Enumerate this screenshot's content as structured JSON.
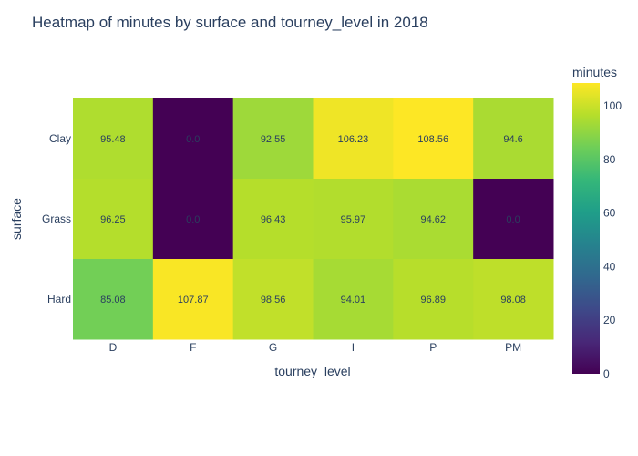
{
  "chart_data": {
    "type": "heatmap",
    "title": "Heatmap of minutes by surface and tourney_level in 2018",
    "xlabel": "tourney_level",
    "ylabel": "surface",
    "x": [
      "D",
      "F",
      "G",
      "I",
      "P",
      "PM"
    ],
    "y": [
      "Clay",
      "Grass",
      "Hard"
    ],
    "z": [
      [
        95.48,
        0.0,
        92.55,
        106.23,
        108.56,
        94.6
      ],
      [
        96.25,
        0.0,
        96.43,
        95.97,
        94.62,
        0.0
      ],
      [
        85.08,
        107.87,
        98.56,
        94.01,
        96.89,
        98.08
      ]
    ],
    "z_labels": [
      [
        "95.48",
        "0.0",
        "92.55",
        "106.23",
        "108.56",
        "94.6"
      ],
      [
        "96.25",
        "0.0",
        "96.43",
        "95.97",
        "94.62",
        "0.0"
      ],
      [
        "85.08",
        "107.87",
        "98.56",
        "94.01",
        "96.89",
        "98.08"
      ]
    ],
    "zlim": [
      0,
      108.56
    ],
    "colorscale": "viridis",
    "colorbar": {
      "title": "minutes",
      "ticks": [
        0,
        20,
        40,
        60,
        80,
        100
      ],
      "tick_labels": [
        "0",
        "20",
        "40",
        "60",
        "80",
        "100"
      ]
    }
  }
}
